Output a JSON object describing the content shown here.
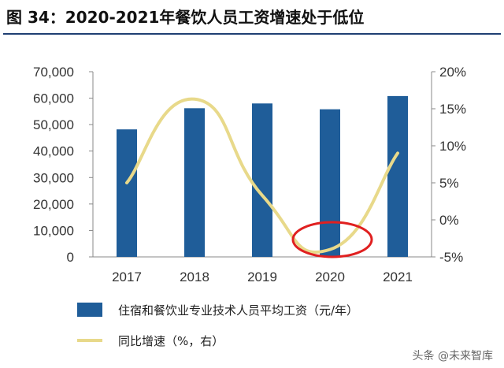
{
  "title": "图 34：2020-2021年餐饮人员工资增速处于低位",
  "watermark": "头条 @未来智库",
  "colors": {
    "bar": "#1f5d99",
    "line": "#e8d98a",
    "highlight": "#e02020",
    "rule": "#1f3f73"
  },
  "chart_data": {
    "type": "bar",
    "categories": [
      "2017",
      "2018",
      "2019",
      "2020",
      "2021"
    ],
    "series": [
      {
        "name": "住宿和餐饮业专业技术人员平均工资（元/年）",
        "type": "bar",
        "axis": "left",
        "values": [
          48200,
          56200,
          58000,
          55800,
          60800
        ]
      },
      {
        "name": "同比增速（%，右）",
        "type": "line",
        "axis": "right",
        "values": [
          5.0,
          16.3,
          3.3,
          -4.0,
          9.0
        ]
      }
    ],
    "left_axis": {
      "ylim": [
        0,
        70000
      ],
      "ticks": [
        0,
        10000,
        20000,
        30000,
        40000,
        50000,
        60000,
        70000
      ],
      "tick_labels": [
        "0",
        "10,000",
        "20,000",
        "30,000",
        "40,000",
        "50,000",
        "60,000",
        "70,000"
      ]
    },
    "right_axis": {
      "ylim": [
        -5,
        20
      ],
      "ticks": [
        -5,
        0,
        5,
        10,
        15,
        20
      ],
      "tick_labels": [
        "-5%",
        "0%",
        "5%",
        "10%",
        "15%",
        "20%"
      ]
    },
    "highlight": "2020",
    "legend": "bottom"
  }
}
